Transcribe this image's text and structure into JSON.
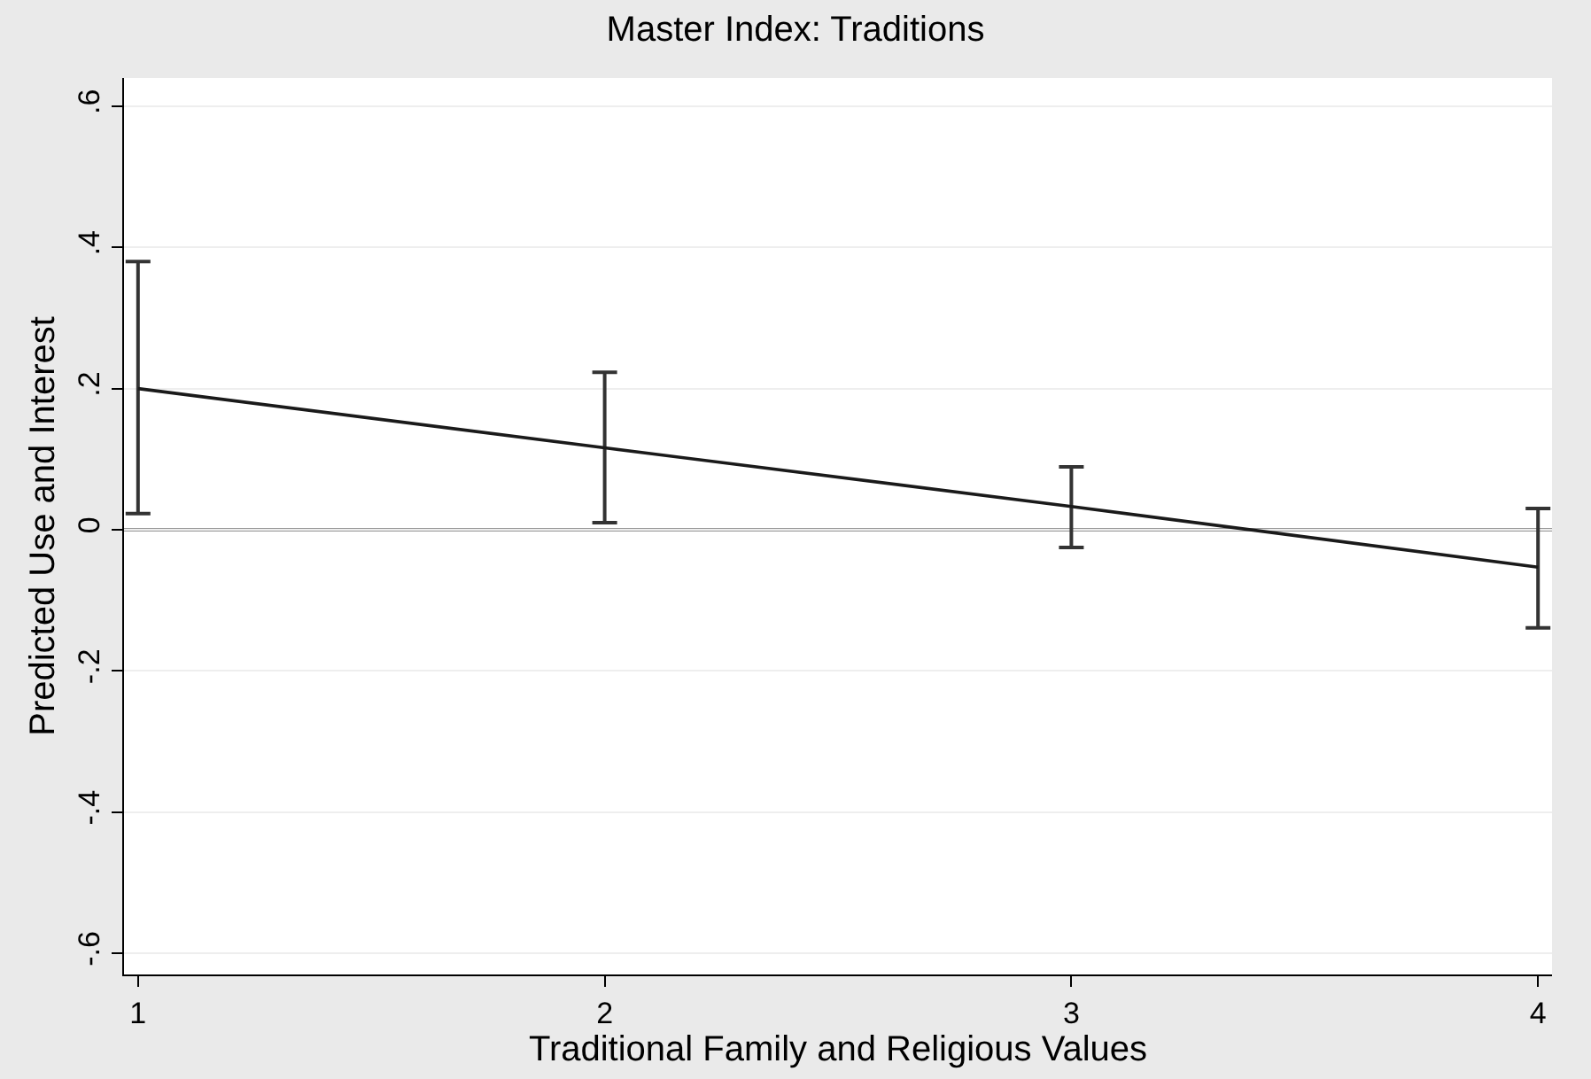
{
  "chart_data": {
    "type": "line",
    "title": "Master Index: Traditions",
    "xlabel": "Traditional Family and Religious Values",
    "ylabel": "Predicted Use and Interest",
    "x": [
      1,
      2,
      3,
      4
    ],
    "series": [
      {
        "color": "#1a1a1a",
        "values": [
          0.2,
          0.116,
          0.033,
          -0.053
        ],
        "errors": [
          [
            0.023,
            0.38
          ],
          [
            0.01,
            0.223
          ],
          [
            -0.025,
            0.089
          ],
          [
            -0.139,
            0.03
          ]
        ]
      }
    ],
    "xlim": [
      0.97,
      4.03
    ],
    "xticks": [
      1,
      2,
      3,
      4
    ],
    "ylim": [
      -0.63,
      0.64
    ],
    "yticks": [
      {
        "value": -0.6,
        "label": "-.6"
      },
      {
        "value": -0.4,
        "label": "-.4"
      },
      {
        "value": -0.2,
        "label": "-.2"
      },
      0,
      {
        "value": 0.2,
        "label": ".2"
      },
      {
        "value": 0.4,
        "label": ".4"
      },
      {
        "value": 0.6,
        "label": ".6"
      }
    ],
    "ref_lines": [
      {
        "axis": "y",
        "value": 0,
        "color": "#333333"
      }
    ],
    "grid": "y",
    "marker": "none",
    "line_style": "solid"
  }
}
